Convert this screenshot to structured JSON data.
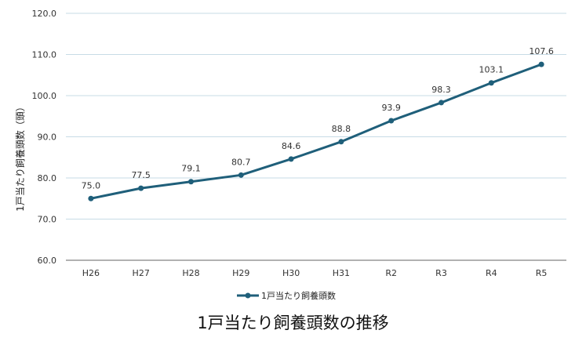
{
  "chart_data": {
    "type": "line",
    "categories": [
      "H26",
      "H27",
      "H28",
      "H29",
      "H30",
      "H31",
      "R2",
      "R3",
      "R4",
      "R5"
    ],
    "series": [
      {
        "name": "1戸当たり飼養頭数",
        "values": [
          75.0,
          77.5,
          79.1,
          80.7,
          84.6,
          88.8,
          93.9,
          98.3,
          103.1,
          107.6
        ],
        "color": "#1f5f7a"
      }
    ],
    "ylabel": "1戸当たり飼養頭数（頭）",
    "ylim": [
      60,
      120
    ],
    "yticks": [
      "60.0",
      "70.0",
      "80.0",
      "90.0",
      "100.0",
      "110.0",
      "120.0"
    ],
    "data_labels": [
      "75.0",
      "77.5",
      "79.1",
      "80.7",
      "84.6",
      "88.8",
      "93.9",
      "98.3",
      "103.1",
      "107.6"
    ],
    "grid": "horizontal",
    "legend_position": "bottom",
    "gridline_color": "#c7dbe6",
    "axis_color": "#666666"
  },
  "caption": "1戸当たり飼養頭数の推移"
}
